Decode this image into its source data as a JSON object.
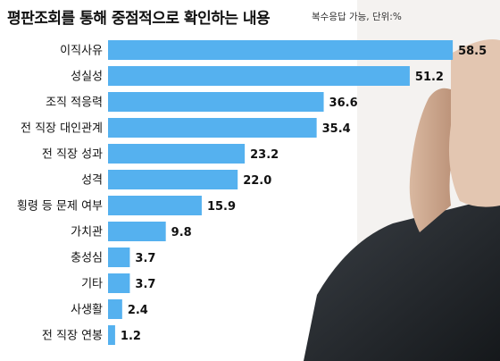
{
  "title": "평판조회를 통해 중점적으로 확인하는 내용",
  "note": "복수응답 가능, 단위:%",
  "chart_data": {
    "type": "bar",
    "orientation": "horizontal",
    "title": "평판조회를 통해 중점적으로 확인하는 내용",
    "unit": "%",
    "categories": [
      "이직사유",
      "성실성",
      "조직 적응력",
      "전 직장 대인관계",
      "전 직장 성과",
      "성격",
      "횡령 등 문제 여부",
      "가치관",
      "충성심",
      "기타",
      "사생활",
      "전 직장 연봉"
    ],
    "values": [
      58.5,
      51.2,
      36.6,
      35.4,
      23.2,
      22.0,
      15.9,
      9.8,
      3.7,
      3.7,
      2.4,
      1.2
    ],
    "value_labels": [
      "58.5",
      "51.2",
      "36.6",
      "35.4",
      "23.2",
      "22.0",
      "15.9",
      "9.8",
      "3.7",
      "3.7",
      "2.4",
      "1.2"
    ],
    "xlim": [
      0,
      60
    ],
    "bar_color": "#55b1ef",
    "grid": false,
    "legend": "none"
  },
  "colors": {
    "bar": "#55b1ef",
    "label_bg": "#ffffff",
    "text": "#111111"
  }
}
